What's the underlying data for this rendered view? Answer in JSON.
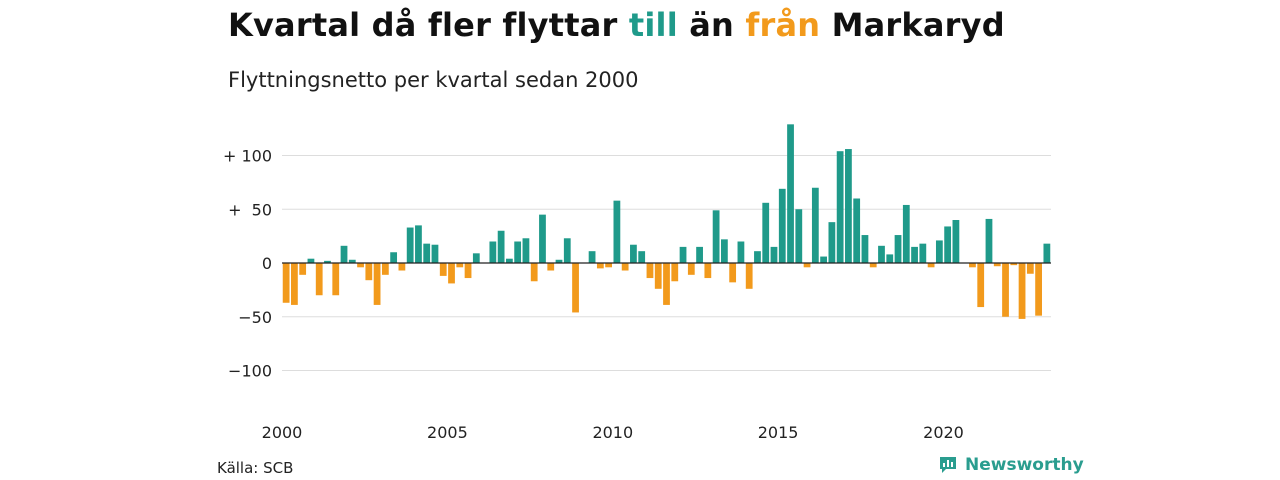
{
  "title_parts": {
    "p1": "Kvartal då fler flyttar ",
    "p2": "till",
    "p3": " än ",
    "p4": "från",
    "p5": " Markaryd"
  },
  "subtitle": "Flyttningsnetto per kvartal sedan 2000",
  "source": "Källa: SCB",
  "brand": "Newsworthy",
  "colors": {
    "positive": "#1f9a8a",
    "negative": "#f29a1c",
    "text": "#111111",
    "grid": "#dddddd",
    "brand": "#2a9d8f"
  },
  "chart_data": {
    "type": "bar",
    "title": "Kvartal då fler flyttar till än från Markaryd",
    "subtitle": "Flyttningsnetto per kvartal sedan 2000",
    "ylim": [
      -110,
      130
    ],
    "yticks": [
      {
        "value": 100,
        "label": "+ 100"
      },
      {
        "value": 50,
        "label": "+  50"
      },
      {
        "value": 0,
        "label": "0"
      },
      {
        "value": -50,
        "label": "−50"
      },
      {
        "value": -100,
        "label": "−100"
      }
    ],
    "xticks": [
      "2000",
      "2005",
      "2010",
      "2015",
      "2020"
    ],
    "start_year": 2000,
    "grid": true,
    "values": [
      -37,
      -39,
      -11,
      4,
      -30,
      2,
      -30,
      16,
      3,
      -4,
      -16,
      -39,
      -11,
      10,
      -7,
      33,
      35,
      18,
      17,
      -12,
      -19,
      -4,
      -14,
      9,
      0,
      20,
      30,
      4,
      20,
      23,
      -17,
      45,
      -7,
      3,
      23,
      -46,
      0,
      11,
      -5,
      -4,
      58,
      -7,
      17,
      11,
      -14,
      -24,
      -39,
      -17,
      15,
      -11,
      15,
      -14,
      49,
      22,
      -18,
      20,
      -24,
      11,
      56,
      15,
      69,
      129,
      50,
      -4,
      70,
      6,
      38,
      104,
      106,
      60,
      26,
      -4,
      16,
      8,
      26,
      54,
      15,
      18,
      -4,
      21,
      34,
      40,
      0,
      -4,
      -41,
      41,
      -3,
      -50,
      -2,
      -52,
      -10,
      -49,
      18
    ]
  }
}
